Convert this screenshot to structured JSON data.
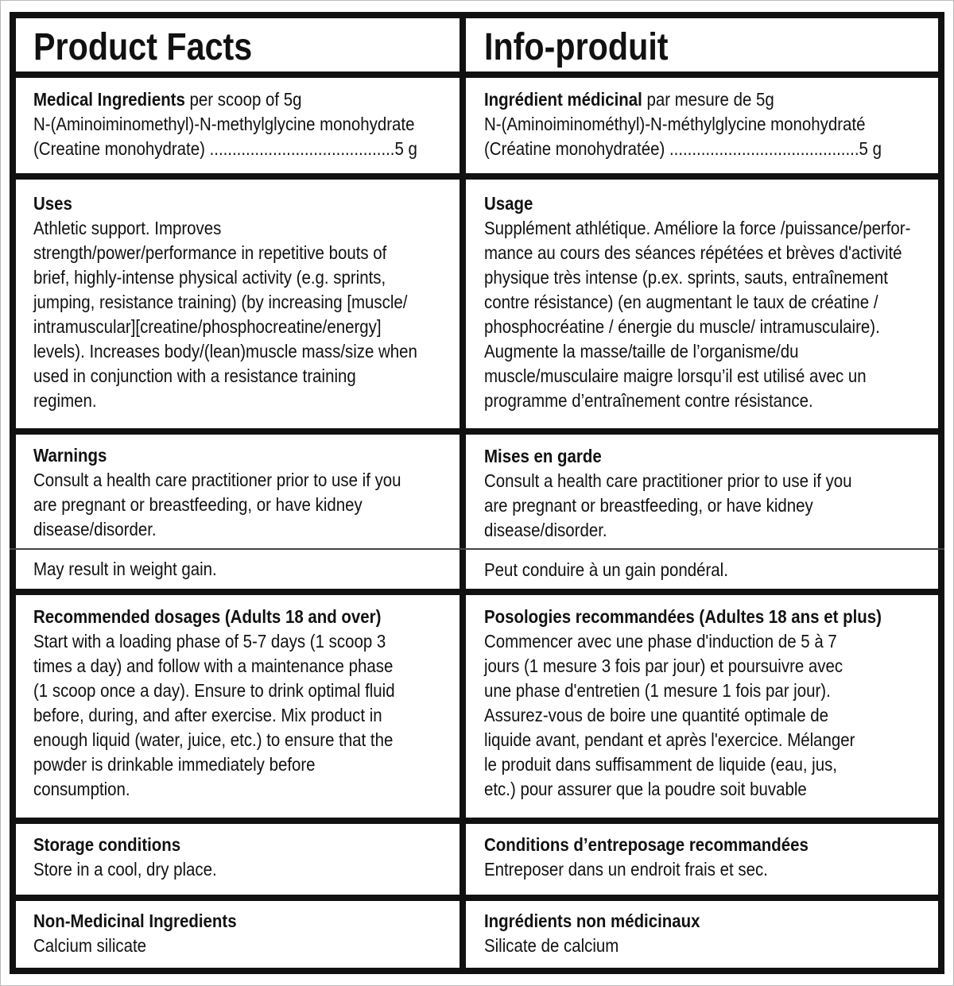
{
  "english": {
    "title": "Product Facts",
    "medical": {
      "heading": "Medical Ingredients",
      "suffix": " per scoop of 5g",
      "body": "N-(Aminoiminomethyl)-N-methylglycine monohydrate\n(Creatine monohydrate) .........................................5 g"
    },
    "uses": {
      "heading": "Uses",
      "body": "Athletic support. Improves\nstrength/power/performance in repetitive bouts of\nbrief, highly-intense physical activity (e.g. sprints,\njumping, resistance training) (by increasing [muscle/\nintramuscular][creatine/phosphocreatine/energy]\nlevels). Increases body/(lean)muscle mass/size when\nused in conjunction with a resistance training\nregimen."
    },
    "warnings": {
      "heading": "Warnings",
      "body": "Consult a health care practitioner prior to use if you\nare pregnant or breastfeeding, or have kidney\ndisease/disorder."
    },
    "weight": "May result in weight gain.",
    "dosages": {
      "heading": "Recommended dosages (Adults 18 and over)",
      "body": "Start with a loading phase of 5-7 days (1 scoop 3\ntimes a day) and follow with a maintenance phase\n(1 scoop once a day). Ensure to drink optimal fluid\nbefore, during, and after exercise. Mix product in\nenough liquid (water, juice, etc.) to ensure that the\npowder is drinkable immediately before\nconsumption."
    },
    "storage": {
      "heading": "Storage conditions",
      "body": "Store in a cool, dry place."
    },
    "nonmed": {
      "heading": "Non-Medicinal Ingredients",
      "body": "Calcium silicate"
    }
  },
  "french": {
    "title": "Info-produit",
    "medical": {
      "heading": "Ingrédient médicinal",
      "suffix": " par mesure de 5g",
      "body": "N-(Aminoiminométhyl)-N-méthylglycine monohydraté\n(Créatine monohydratée)  ..........................................5 g"
    },
    "uses": {
      "heading": "Usage",
      "body": "Supplément athlétique. Améliore la force /puissance/perfor-\nmance au cours des séances répétées et brèves d'activité\nphysique très intense (p.ex. sprints, sauts, entraînement\ncontre résistance) (en augmentant le taux de créatine /\nphosphocréatine / énergie du muscle/ intramusculaire).\nAugmente la masse/taille de l’organisme/du\nmuscle/musculaire maigre lorsqu’il est utilisé avec un\nprogramme d’entraînement contre résistance."
    },
    "warnings": {
      "heading": "Mises en garde",
      "body": "Consult a health care practitioner prior to use if you\nare pregnant or breastfeeding, or have kidney\ndisease/disorder."
    },
    "weight": "Peut conduire à un gain pondéral.",
    "dosages": {
      "heading": "Posologies recommandées (Adultes 18 ans et plus)",
      "body": "Commencer avec une phase d'induction de 5 à 7\njours (1 mesure 3 fois par jour) et poursuivre avec\nune phase d'entretien (1 mesure 1 fois par jour).\nAssurez-vous de boire une quantité optimale de\nliquide avant, pendant et après l'exercice. Mélanger\nle produit dans suffisamment de liquide (eau, jus,\netc.) pour assurer que la poudre soit buvable"
    },
    "storage": {
      "heading": "Conditions d’entreposage recommandées",
      "body": "Entreposer dans un endroit frais et sec."
    },
    "nonmed": {
      "heading": "Ingrédients non médicinaux",
      "body": "Silicate de calcium"
    }
  }
}
